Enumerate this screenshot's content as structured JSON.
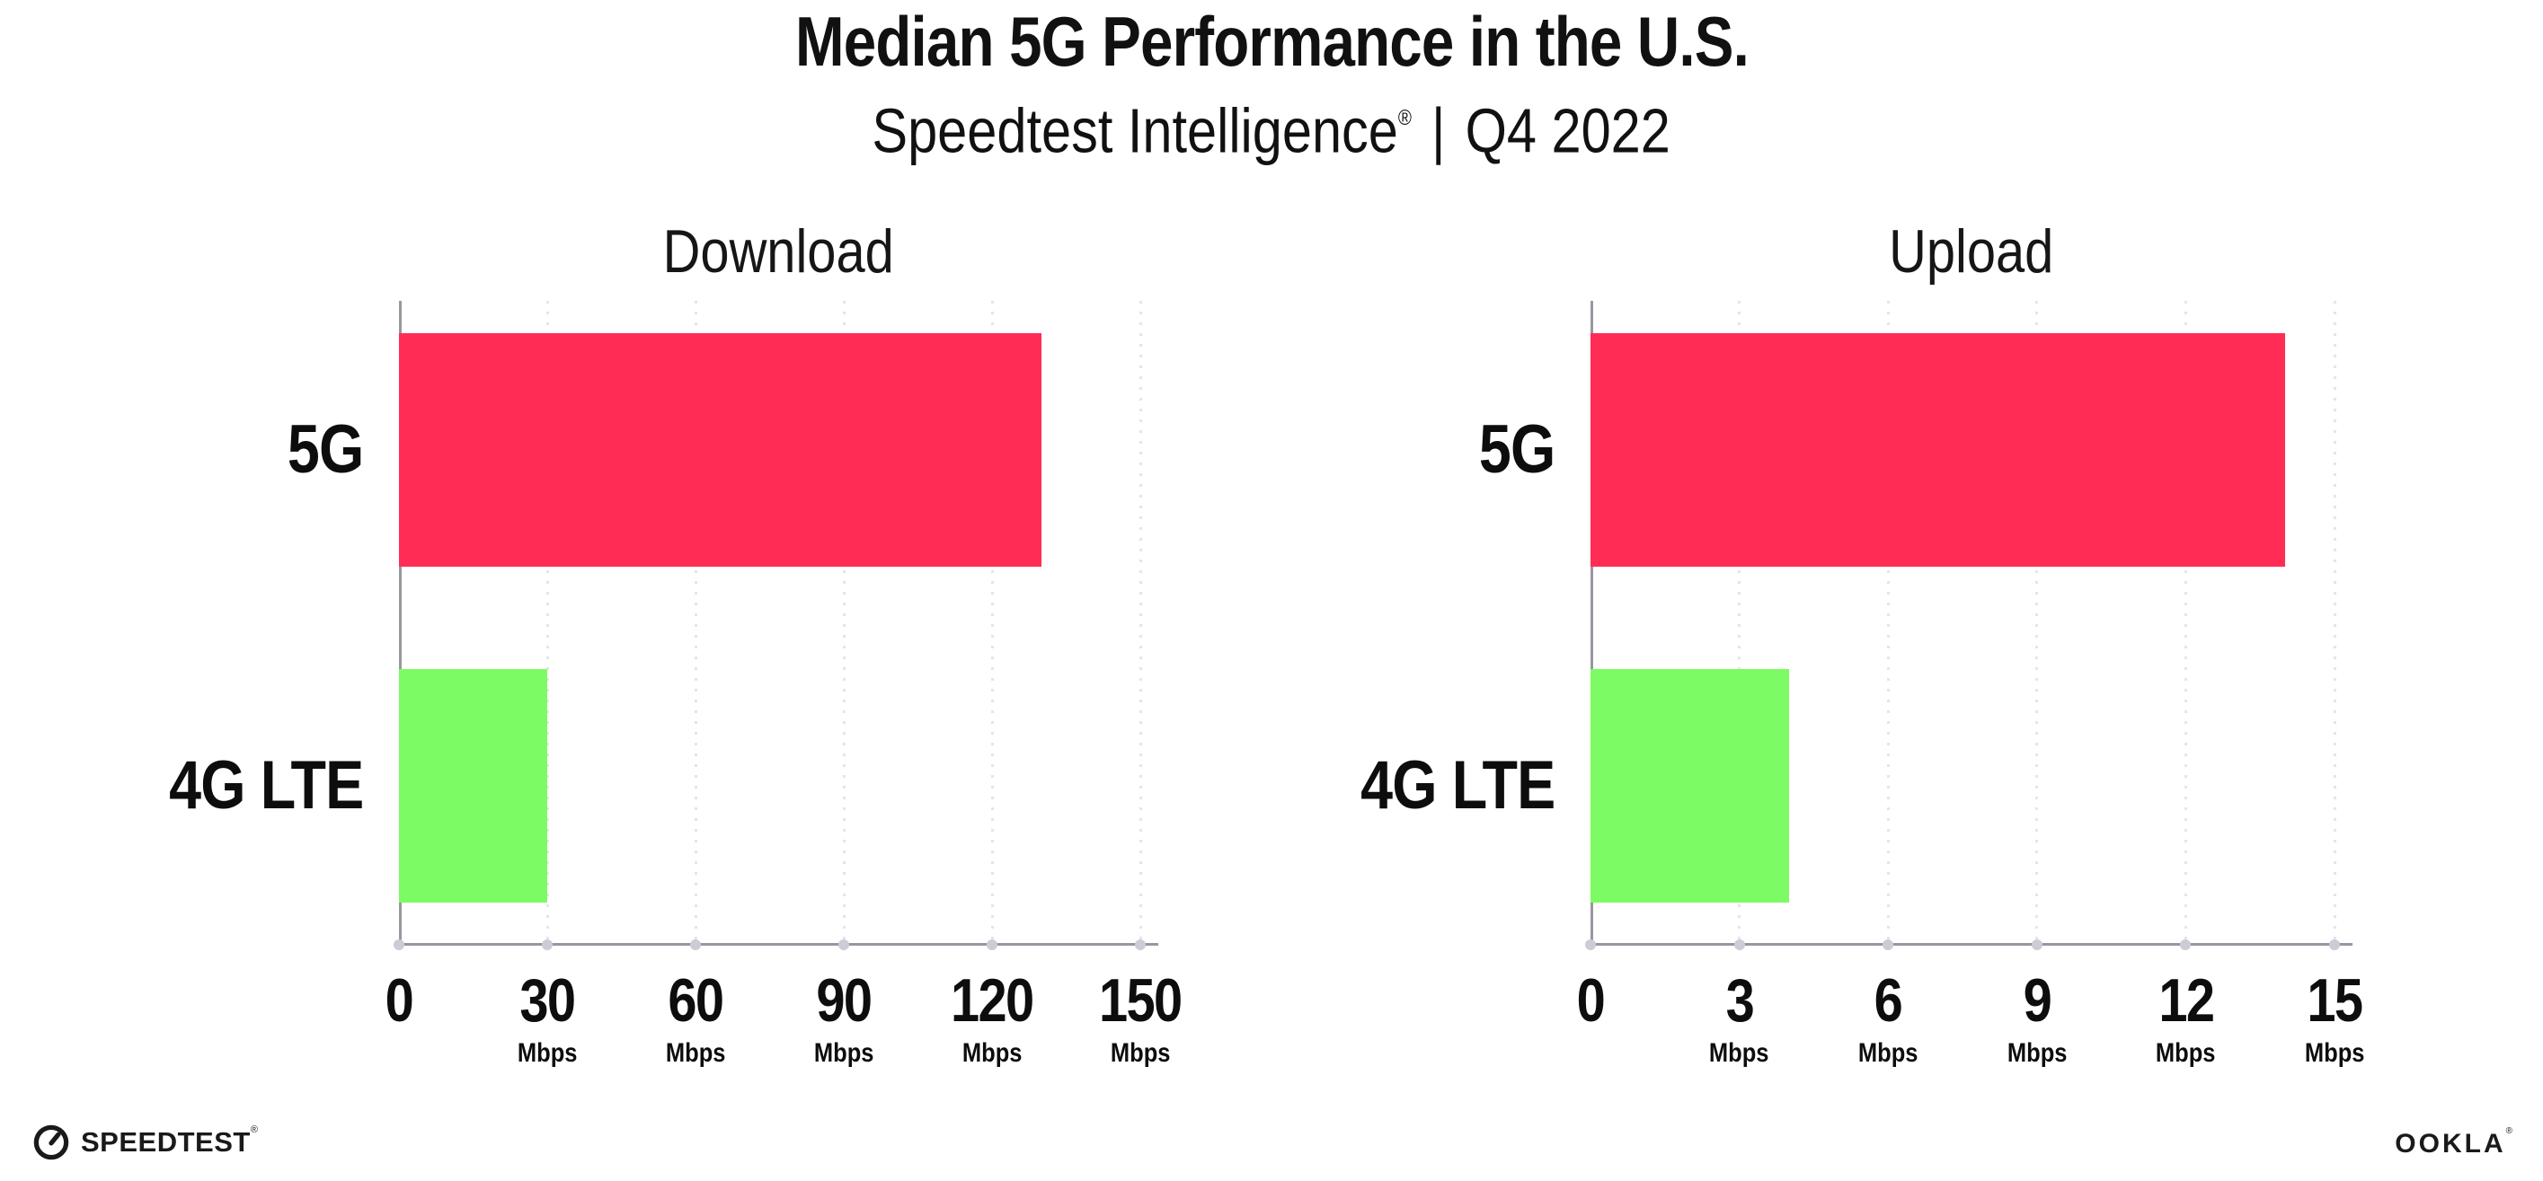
{
  "header": {
    "title": "Median 5G Performance in the U.S.",
    "subtitle_brand": "Speedtest Intelligence",
    "subtitle_reg": "®",
    "subtitle_sep": "|",
    "subtitle_period": "Q4 2022"
  },
  "chart_data": [
    {
      "type": "bar",
      "orientation": "horizontal",
      "title": "Download",
      "categories": [
        "5G",
        "4G LTE"
      ],
      "values": [
        130,
        30
      ],
      "unit": "Mbps",
      "xlim": [
        0,
        150
      ],
      "ticks": [
        0,
        30,
        60,
        90,
        120,
        150
      ],
      "bar_colors": [
        "#FF2D55",
        "#7CFB64"
      ],
      "grid": "vertical-dotted",
      "legend": "none"
    },
    {
      "type": "bar",
      "orientation": "horizontal",
      "title": "Upload",
      "categories": [
        "5G",
        "4G LTE"
      ],
      "values": [
        14,
        4
      ],
      "unit": "Mbps",
      "xlim": [
        0,
        15
      ],
      "ticks": [
        0,
        3,
        6,
        9,
        12,
        15
      ],
      "bar_colors": [
        "#FF2D55",
        "#7CFB64"
      ],
      "grid": "vertical-dotted",
      "legend": "none"
    }
  ],
  "footer": {
    "speedtest_text": "SPEEDTEST",
    "speedtest_reg": "®",
    "ookla_text": "OOKLA",
    "ookla_reg": "®"
  },
  "colors": {
    "bar_5g": "#FF2D55",
    "bar_4g_lte": "#7CFB64",
    "axis_line": "#97979F",
    "grid_dots": "#E4E4EE",
    "axis_tick_dots": "#CCCCD7",
    "text": "#111111",
    "background": "#FFFFFF"
  }
}
